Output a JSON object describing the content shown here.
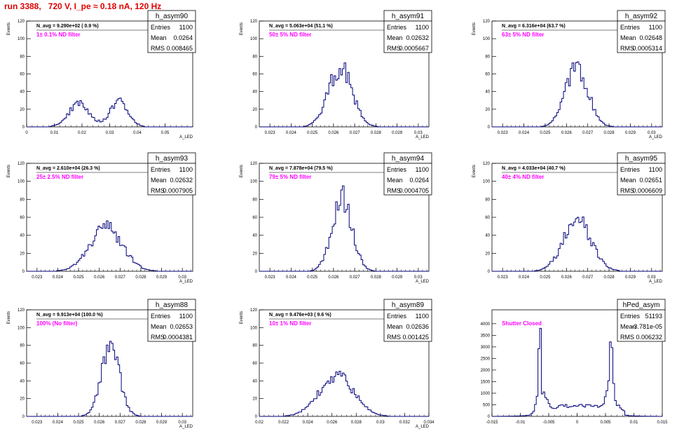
{
  "page_title": "run 3388,   720 V, I_pe ≈ 0.18 nA, 120 Hz",
  "colors": {
    "hist": "#00007a",
    "annotation": "#ff00ff",
    "title": "#e00000"
  },
  "chart_data": [
    {
      "type": "bar",
      "name": "h_asym90",
      "stats": {
        "Entries": "1100",
        "Mean": "0.0264",
        "RMS": "0.008465"
      },
      "navg": "N_avg = 9.290e+02 ( 0.9 %)",
      "filter": "1± 0.1% ND filter",
      "ylabel": "Events",
      "xlabel": "A_LED",
      "xlim": [
        0,
        0.06
      ],
      "ylim": [
        0,
        120
      ],
      "xticks": [
        "0",
        "0.01",
        "0.02",
        "0.03",
        "0.04",
        "0.05"
      ],
      "yticks": [
        "0",
        "20",
        "40",
        "60",
        "80",
        "100",
        "120"
      ],
      "peaks": [
        {
          "mu": 0.019,
          "sigma": 0.0038,
          "amp": 26
        },
        {
          "mu": 0.0335,
          "sigma": 0.0032,
          "amp": 30
        }
      ]
    },
    {
      "type": "bar",
      "name": "h_asym91",
      "stats": {
        "Entries": "1100",
        "Mean": "0.02632",
        "RMS": "0.0005667"
      },
      "navg": "N_avg = 5.063e+04 (51.1 %)",
      "filter": "50± 5% ND filter",
      "ylabel": "Events",
      "xlabel": "A_LED",
      "xlim": [
        0.0225,
        0.0305
      ],
      "ylim": [
        0,
        120
      ],
      "xticks": [
        "0.023",
        "0.024",
        "0.025",
        "0.026",
        "0.027",
        "0.028",
        "0.029",
        "0.03"
      ],
      "yticks": [
        "0",
        "20",
        "40",
        "60",
        "80",
        "100",
        "120"
      ],
      "peaks": [
        {
          "mu": 0.02632,
          "sigma": 0.00056,
          "amp": 67
        }
      ]
    },
    {
      "type": "bar",
      "name": "h_asym92",
      "stats": {
        "Entries": "1100",
        "Mean": "0.02648",
        "RMS": "0.0005314"
      },
      "navg": "N_avg = 6.316e+04 (63.7 %)",
      "filter": "63± 5% ND filter",
      "ylabel": "Events",
      "xlabel": "A_LED",
      "xlim": [
        0.0225,
        0.0305
      ],
      "ylim": [
        0,
        120
      ],
      "xticks": [
        "0.023",
        "0.024",
        "0.025",
        "0.026",
        "0.027",
        "0.028",
        "0.029",
        "0.03"
      ],
      "yticks": [
        "0",
        "20",
        "40",
        "60",
        "80",
        "100",
        "120"
      ],
      "peaks": [
        {
          "mu": 0.02648,
          "sigma": 0.00053,
          "amp": 68
        }
      ]
    },
    {
      "type": "bar",
      "name": "h_asym93",
      "stats": {
        "Entries": "1100",
        "Mean": "0.02632",
        "RMS": "0.0007905"
      },
      "navg": "N_avg = 2.610e+04 (26.3 %)",
      "filter": "25± 2.5% ND filter",
      "ylabel": "Events",
      "xlabel": "A_LED",
      "xlim": [
        0.0225,
        0.0305
      ],
      "ylim": [
        0,
        120
      ],
      "xticks": [
        "0.023",
        "0.024",
        "0.025",
        "0.026",
        "0.027",
        "0.028",
        "0.029",
        "0.03"
      ],
      "yticks": [
        "0",
        "20",
        "40",
        "60",
        "80",
        "100",
        "120"
      ],
      "peaks": [
        {
          "mu": 0.02632,
          "sigma": 0.00079,
          "amp": 48
        }
      ]
    },
    {
      "type": "bar",
      "name": "h_asym94",
      "stats": {
        "Entries": "1100",
        "Mean": "0.0264",
        "RMS": "0.0004705"
      },
      "navg": "N_avg = 7.878e+04 (79.5 %)",
      "filter": "79± 5% ND filter",
      "ylabel": "Events",
      "xlabel": "A_LED",
      "xlim": [
        0.0225,
        0.0305
      ],
      "ylim": [
        0,
        120
      ],
      "xticks": [
        "0.023",
        "0.024",
        "0.025",
        "0.026",
        "0.027",
        "0.028",
        "0.029",
        "0.03"
      ],
      "yticks": [
        "0",
        "20",
        "40",
        "60",
        "80",
        "100",
        "120"
      ],
      "peaks": [
        {
          "mu": 0.0264,
          "sigma": 0.00047,
          "amp": 82
        }
      ]
    },
    {
      "type": "bar",
      "name": "h_asym95",
      "stats": {
        "Entries": "1100",
        "Mean": "0.02651",
        "RMS": "0.0006609"
      },
      "navg": "N_avg = 4.033e+04 (40.7 %)",
      "filter": "40± 4% ND filter",
      "ylabel": "Events",
      "xlabel": "A_LED",
      "xlim": [
        0.0225,
        0.0305
      ],
      "ylim": [
        0,
        120
      ],
      "xticks": [
        "0.023",
        "0.024",
        "0.025",
        "0.026",
        "0.027",
        "0.028",
        "0.029",
        "0.03"
      ],
      "yticks": [
        "0",
        "20",
        "40",
        "60",
        "80",
        "100",
        "120"
      ],
      "peaks": [
        {
          "mu": 0.02651,
          "sigma": 0.00066,
          "amp": 56
        }
      ]
    },
    {
      "type": "bar",
      "name": "h_asym88",
      "stats": {
        "Entries": "1100",
        "Mean": "0.02653",
        "RMS": "0.0004381"
      },
      "navg": "N_avg = 9.913e+04 (100.0 %)",
      "filter": "100% (No filter)",
      "ylabel": "Events",
      "xlabel": "A_LED",
      "xlim": [
        0.0225,
        0.0305
      ],
      "ylim": [
        0,
        120
      ],
      "xticks": [
        "0.023",
        "0.024",
        "0.025",
        "0.026",
        "0.027",
        "0.028",
        "0.029",
        "0.03"
      ],
      "yticks": [
        "0",
        "20",
        "40",
        "60",
        "80",
        "100",
        "120"
      ],
      "peaks": [
        {
          "mu": 0.02653,
          "sigma": 0.00044,
          "amp": 78
        }
      ]
    },
    {
      "type": "bar",
      "name": "h_asym89",
      "stats": {
        "Entries": "1100",
        "Mean": "0.02636",
        "RMS": "0.001425"
      },
      "navg": "N_avg = 9.476e+03 ( 9.6 %)",
      "filter": "10± 1% ND filter",
      "ylabel": "Events",
      "xlabel": "A_LED",
      "xlim": [
        0.02,
        0.034
      ],
      "ylim": [
        0,
        120
      ],
      "xticks": [
        "0.02",
        "0.022",
        "0.024",
        "0.026",
        "0.028",
        "0.03",
        "0.032",
        "0.034"
      ],
      "yticks": [
        "0",
        "20",
        "40",
        "60",
        "80",
        "100",
        "120"
      ],
      "peaks": [
        {
          "mu": 0.02636,
          "sigma": 0.00142,
          "amp": 45
        }
      ]
    },
    {
      "type": "bar",
      "name": "hPed_asym",
      "stats": {
        "Entries": "51193",
        "Mean": "-3.781e-05",
        "RMS": "0.006232"
      },
      "navg": "",
      "filter": "Shutter Closed",
      "ylabel": "",
      "xlabel": "",
      "xlim": [
        -0.015,
        0.015
      ],
      "ylim": [
        0,
        4600
      ],
      "xticks": [
        "-0.015",
        "-0.01",
        "-0.005",
        "0",
        "0.005",
        "0.01",
        "0.015"
      ],
      "yticks": [
        "0",
        "500",
        "1000",
        "1500",
        "2000",
        "2500",
        "3000",
        "3500",
        "4000"
      ],
      "peaks": [
        {
          "mu": -0.0066,
          "sigma": 0.00018,
          "amp": 3600
        },
        {
          "mu": 0.006,
          "sigma": 0.0003,
          "amp": 2700
        },
        {
          "mu": -0.0062,
          "sigma": 0.0008,
          "amp": 700
        },
        {
          "mu": 0.0058,
          "sigma": 0.0009,
          "amp": 600
        },
        {
          "mu": 0,
          "sigma": 0.0045,
          "amp": 250
        }
      ],
      "floor": 220,
      "window": [
        -0.0075,
        0.0085
      ]
    }
  ]
}
